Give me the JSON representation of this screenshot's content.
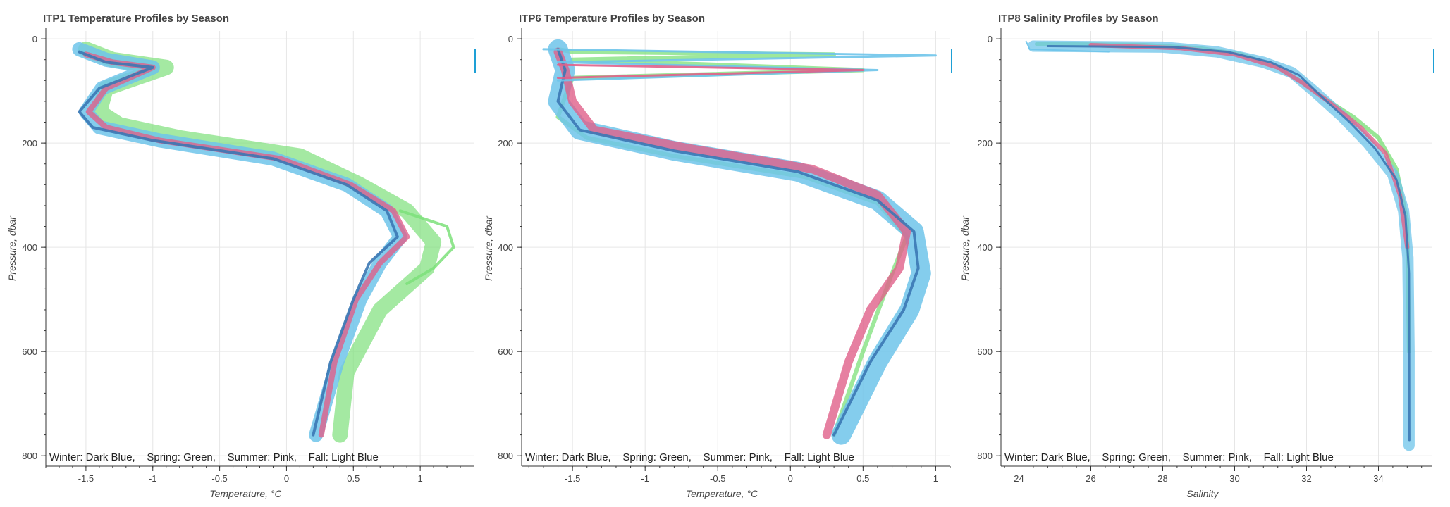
{
  "colors": {
    "winter": "#3b78b4",
    "spring": "#7de07a",
    "summer": "#e0608a",
    "fall": "#6ec4ea",
    "toolbar": "#1ea0d6"
  },
  "chart_data": [
    {
      "type": "line",
      "title": "ITP1 Temperature Profiles by Season",
      "xlabel": "Temperature, °C",
      "ylabel": "Pressure, dbar",
      "xlim": [
        -1.8,
        1.4
      ],
      "ylim": [
        820,
        -15
      ],
      "xticks": [
        -1.5,
        -1,
        -0.5,
        0,
        0.5,
        1
      ],
      "xtick_labels": [
        "-1.5",
        "-1",
        "-0.5",
        "0",
        "0.5",
        "1"
      ],
      "yticks": [
        0,
        200,
        400,
        600,
        800
      ],
      "ytick_labels": [
        "0",
        "200",
        "400",
        "600",
        "800"
      ],
      "grid": true,
      "legend_position": "bottom",
      "legend_text": "Winter: Dark Blue,    Spring: Green,    Summer: Pink,    Fall: Light Blue",
      "series": [
        {
          "season": "spring",
          "width": 22,
          "opacity": 0.7,
          "x": [
            -1.5,
            -1.3,
            -0.9,
            -1.35,
            -1.4,
            -1.25,
            -0.8,
            0.1,
            0.55,
            0.9,
            1.1,
            1.05,
            0.7,
            0.45,
            0.4
          ],
          "y": [
            20,
            40,
            55,
            95,
            140,
            165,
            190,
            225,
            280,
            330,
            390,
            440,
            520,
            640,
            760
          ]
        },
        {
          "season": "spring",
          "width": 4,
          "opacity": 0.85,
          "x": [
            0.85,
            1.2,
            1.25,
            1.1,
            0.9
          ],
          "y": [
            330,
            360,
            400,
            440,
            470
          ]
        },
        {
          "season": "fall",
          "width": 20,
          "opacity": 0.85,
          "x": [
            -1.55,
            -1.35,
            -1.0,
            -1.38,
            -1.5,
            -1.4,
            -0.95,
            -0.1,
            0.45,
            0.75,
            0.85,
            0.7,
            0.55,
            0.38,
            0.22
          ],
          "y": [
            20,
            40,
            55,
            95,
            140,
            170,
            195,
            230,
            280,
            330,
            380,
            430,
            500,
            620,
            760
          ]
        },
        {
          "season": "summer",
          "width": 8,
          "opacity": 0.8,
          "x": [
            -1.5,
            -1.3,
            -1.0,
            -1.35,
            -1.48,
            -1.35,
            -0.95,
            -0.05,
            0.48,
            0.8,
            0.9,
            0.7,
            0.52,
            0.36,
            0.26
          ],
          "y": [
            30,
            45,
            55,
            95,
            140,
            170,
            195,
            230,
            280,
            330,
            380,
            430,
            500,
            620,
            760
          ]
        },
        {
          "season": "winter",
          "width": 4,
          "opacity": 0.9,
          "x": [
            -1.55,
            -1.35,
            -1.0,
            -1.4,
            -1.55,
            -1.45,
            -1.0,
            -0.1,
            0.45,
            0.75,
            0.83,
            0.62,
            0.5,
            0.33,
            0.2
          ],
          "y": [
            25,
            45,
            55,
            95,
            140,
            170,
            195,
            230,
            280,
            330,
            380,
            430,
            500,
            620,
            760
          ]
        }
      ]
    },
    {
      "type": "line",
      "title": "ITP6 Temperature Profiles by Season",
      "xlabel": "Temperature, °C",
      "ylabel": "Pressure, dbar",
      "xlim": [
        -1.85,
        1.1
      ],
      "ylim": [
        820,
        -15
      ],
      "xticks": [
        -1.5,
        -1,
        -0.5,
        0,
        0.5,
        1
      ],
      "xtick_labels": [
        "-1.5",
        "-1",
        "-0.5",
        "0",
        "0.5",
        "1"
      ],
      "yticks": [
        0,
        200,
        400,
        600,
        800
      ],
      "ytick_labels": [
        "0",
        "200",
        "400",
        "600",
        "800"
      ],
      "grid": true,
      "legend_position": "bottom",
      "legend_text": "Winter: Dark Blue,    Spring: Green,    Summer: Pink,    Fall: Light Blue",
      "series": [
        {
          "season": "spring",
          "width": 6,
          "opacity": 0.75,
          "x": [
            -1.6,
            -1.5,
            0.3,
            -1.5,
            0.5,
            -1.5,
            -1.55,
            -1.6,
            -1.4,
            -0.8,
            0.1,
            0.6,
            0.8,
            0.7,
            0.5,
            0.3
          ],
          "y": [
            20,
            25,
            30,
            40,
            60,
            75,
            110,
            150,
            190,
            225,
            265,
            315,
            380,
            450,
            600,
            760
          ]
        },
        {
          "season": "fall",
          "width": 28,
          "opacity": 0.85,
          "x": [
            -1.6,
            -1.55,
            -1.6,
            -1.45,
            -0.8,
            0.05,
            0.6,
            0.85,
            0.9,
            0.82,
            0.6,
            0.35
          ],
          "y": [
            20,
            60,
            120,
            175,
            215,
            255,
            310,
            370,
            450,
            520,
            620,
            760
          ]
        },
        {
          "season": "summer",
          "width": 12,
          "opacity": 0.8,
          "x": [
            -1.6,
            -1.55,
            -1.5,
            -1.35,
            -0.7,
            0.15,
            0.6,
            0.8,
            0.75,
            0.55,
            0.4,
            0.25
          ],
          "y": [
            25,
            60,
            120,
            175,
            210,
            250,
            300,
            370,
            440,
            520,
            620,
            760
          ]
        },
        {
          "season": "winter",
          "width": 4,
          "opacity": 0.9,
          "x": [
            -1.6,
            -1.55,
            -1.6,
            -1.45,
            -0.8,
            0.05,
            0.6,
            0.85,
            0.88,
            0.78,
            0.55,
            0.3
          ],
          "y": [
            20,
            60,
            120,
            175,
            215,
            255,
            310,
            370,
            440,
            520,
            620,
            760
          ]
        },
        {
          "season": "fall",
          "width": 3,
          "opacity": 0.9,
          "x": [
            -1.7,
            1.0,
            -1.6,
            0.6,
            -1.6
          ],
          "y": [
            20,
            32,
            45,
            60,
            80
          ]
        },
        {
          "season": "summer",
          "width": 3,
          "opacity": 0.9,
          "x": [
            -1.6,
            0.5,
            -1.6
          ],
          "y": [
            50,
            60,
            75
          ]
        }
      ]
    },
    {
      "type": "line",
      "title": "ITP8 Salinity Profiles by Season",
      "xlabel": "Salinity",
      "ylabel": "Pressure, dbar",
      "xlim": [
        23.5,
        35.5
      ],
      "ylim": [
        820,
        -15
      ],
      "xticks": [
        24,
        26,
        28,
        30,
        32,
        34
      ],
      "xtick_labels": [
        "24",
        "26",
        "28",
        "30",
        "32",
        "34"
      ],
      "yticks": [
        0,
        200,
        400,
        600,
        800
      ],
      "ytick_labels": [
        "0",
        "200",
        "400",
        "600",
        "800"
      ],
      "grid": true,
      "legend_position": "bottom",
      "legend_text": "Winter: Dark Blue,    Spring: Green,    Summer: Pink,    Fall: Light Blue",
      "series": [
        {
          "season": "spring",
          "width": 6,
          "opacity": 0.8,
          "x": [
            24.5,
            27.5,
            29.0,
            30.2,
            31.2,
            31.8,
            32.4,
            33.3,
            34.0,
            34.5,
            34.8,
            34.85
          ],
          "y": [
            10,
            12,
            18,
            30,
            55,
            80,
            110,
            150,
            190,
            250,
            350,
            600
          ]
        },
        {
          "season": "fall",
          "width": 16,
          "opacity": 0.75,
          "x": [
            24.4,
            28.0,
            29.5,
            30.8,
            31.6,
            32.2,
            33.0,
            33.7,
            34.4,
            34.7,
            34.82,
            34.85,
            34.85
          ],
          "y": [
            14,
            16,
            25,
            45,
            65,
            100,
            150,
            200,
            260,
            330,
            420,
            600,
            780
          ]
        },
        {
          "season": "summer",
          "width": 6,
          "opacity": 0.8,
          "x": [
            26.0,
            28.5,
            30.0,
            31.2,
            31.9,
            32.6,
            33.5,
            34.2,
            34.6,
            34.8
          ],
          "y": [
            12,
            18,
            30,
            55,
            85,
            120,
            170,
            220,
            300,
            400
          ]
        },
        {
          "season": "winter",
          "width": 3,
          "opacity": 0.9,
          "x": [
            24.8,
            28.3,
            29.8,
            31.0,
            31.8,
            32.4,
            33.2,
            33.9,
            34.5,
            34.75,
            34.85,
            34.86
          ],
          "y": [
            14,
            16,
            25,
            45,
            70,
            110,
            160,
            210,
            270,
            340,
            450,
            770
          ]
        },
        {
          "season": "fall",
          "width": 2,
          "opacity": 0.9,
          "x": [
            24.2,
            24.3,
            26.5
          ],
          "y": [
            5,
            20,
            25
          ]
        }
      ]
    }
  ]
}
